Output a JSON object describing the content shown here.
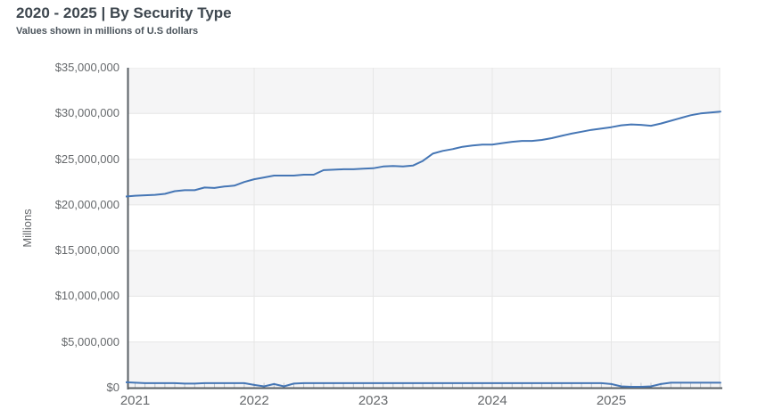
{
  "header": {
    "title": "2020 - 2025 | By Security Type",
    "subtitle": "Values shown in millions of U.S dollars"
  },
  "chart_data": {
    "type": "line",
    "title": "2020 - 2025 | By Security Type",
    "subtitle": "Values shown in millions of U.S dollars",
    "xlabel": "",
    "ylabel": "Millions",
    "ylim": [
      0,
      35000000
    ],
    "y_ticks": [
      {
        "value": 0,
        "label": "$0"
      },
      {
        "value": 5000000,
        "label": "$5,000,000"
      },
      {
        "value": 10000000,
        "label": "$10,000,000"
      },
      {
        "value": 15000000,
        "label": "$15,000,000"
      },
      {
        "value": 20000000,
        "label": "$20,000,000"
      },
      {
        "value": 25000000,
        "label": "$25,000,000"
      },
      {
        "value": 30000000,
        "label": "$30,000,000"
      },
      {
        "value": 35000000,
        "label": "$35,000,000"
      }
    ],
    "x_ticks": [
      {
        "value": 2021,
        "label": "2021"
      },
      {
        "value": 2022,
        "label": "2022"
      },
      {
        "value": 2023,
        "label": "2023"
      },
      {
        "value": 2024,
        "label": "2024"
      },
      {
        "value": 2025,
        "label": "2025"
      }
    ],
    "x_start": 2020.9167,
    "x_step": 0.0833333,
    "legend": "none",
    "grid": "alternating horizontal shaded bands, vertical year gridlines, monthly minor ticks on x axis",
    "colors": {
      "line": "#4576b5",
      "band": "#f5f5f6",
      "gridline": "#e6e6e6",
      "axis": "#595f64",
      "tick_text": "#66696c",
      "title_text": "#3e474f"
    },
    "series": [
      {
        "name": "line-upper",
        "values": [
          20900000,
          21000000,
          21050000,
          21100000,
          21200000,
          21500000,
          21600000,
          21600000,
          21900000,
          21850000,
          22000000,
          22100000,
          22500000,
          22800000,
          23000000,
          23200000,
          23200000,
          23200000,
          23300000,
          23300000,
          23800000,
          23850000,
          23900000,
          23900000,
          23950000,
          24000000,
          24200000,
          24250000,
          24200000,
          24300000,
          24800000,
          25600000,
          25900000,
          26100000,
          26350000,
          26500000,
          26600000,
          26600000,
          26750000,
          26900000,
          27000000,
          27000000,
          27100000,
          27300000,
          27550000,
          27800000,
          28000000,
          28200000,
          28350000,
          28500000,
          28700000,
          28800000,
          28750000,
          28650000,
          28900000,
          29200000,
          29500000,
          29800000,
          30000000,
          30100000,
          30200000
        ]
      },
      {
        "name": "line-lower",
        "values": [
          600000,
          550000,
          500000,
          500000,
          500000,
          500000,
          450000,
          450000,
          500000,
          500000,
          500000,
          500000,
          500000,
          300000,
          150000,
          400000,
          150000,
          450000,
          500000,
          500000,
          500000,
          500000,
          500000,
          500000,
          500000,
          500000,
          500000,
          500000,
          500000,
          500000,
          500000,
          500000,
          500000,
          500000,
          500000,
          500000,
          500000,
          500000,
          500000,
          500000,
          500000,
          500000,
          500000,
          500000,
          500000,
          500000,
          500000,
          500000,
          500000,
          400000,
          150000,
          100000,
          100000,
          150000,
          400000,
          550000,
          550000,
          550000,
          550000,
          550000,
          550000
        ]
      }
    ]
  }
}
